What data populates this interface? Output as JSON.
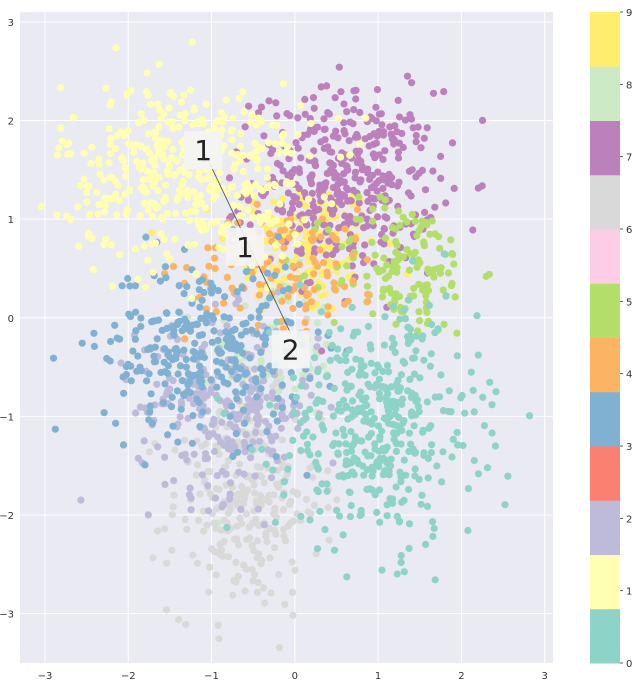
{
  "chart_data": {
    "type": "scatter",
    "title": "",
    "xlabel": "",
    "ylabel": "",
    "xlim": [
      -3.3,
      3.1
    ],
    "ylim": [
      -3.5,
      3.1
    ],
    "xticks": [
      "−3",
      "−2",
      "−1",
      "0",
      "1",
      "2",
      "3"
    ],
    "yticks": [
      "−3",
      "−2",
      "−1",
      "0",
      "1",
      "2",
      "3"
    ],
    "xtick_values": [
      -3,
      -2,
      -1,
      0,
      1,
      2,
      3
    ],
    "ytick_values": [
      -3,
      -2,
      -1,
      0,
      1,
      2,
      3
    ],
    "grid": true,
    "background": "#EAEAF2",
    "colorbar": {
      "labels": [
        "0",
        "1",
        "2",
        "3",
        "4",
        "5",
        "6",
        "7",
        "8",
        "9"
      ],
      "colors": [
        "#8DD3C7",
        "#FFFFB3",
        "#BEBADA",
        "#FB8072",
        "#80B1D3",
        "#FDB462",
        "#B3DE69",
        "#FCCDE5",
        "#D9D9D9",
        "#BC80BD",
        "#CCEBC5",
        "#FFED6F"
      ],
      "placement": "right"
    },
    "series": [
      {
        "name": "9",
        "color": "#FFED6F",
        "center": [
          0.1,
          0.7
        ],
        "spread": [
          0.45,
          0.35
        ],
        "count": 160
      },
      {
        "name": "8",
        "color": "#CCEBC5",
        "center": [
          -0.3,
          -0.4
        ],
        "spread": [
          0.4,
          0.4
        ],
        "count": 80
      },
      {
        "name": "7",
        "color": "#BC80BD",
        "center": [
          0.6,
          1.4
        ],
        "spread": [
          0.55,
          0.45
        ],
        "count": 420
      },
      {
        "name": "6",
        "color": "#D9D9D9",
        "center": [
          -0.6,
          -1.9
        ],
        "spread": [
          0.45,
          0.55
        ],
        "count": 260
      },
      {
        "name": "5",
        "color": "#B3DE69",
        "center": [
          1.3,
          0.5
        ],
        "spread": [
          0.45,
          0.35
        ],
        "count": 150
      },
      {
        "name": "4",
        "color": "#FDB462",
        "center": [
          -0.1,
          0.5
        ],
        "spread": [
          0.6,
          0.3
        ],
        "count": 120
      },
      {
        "name": "2",
        "color": "#BEBADA",
        "center": [
          -0.8,
          -0.9
        ],
        "spread": [
          0.55,
          0.45
        ],
        "count": 260
      },
      {
        "name": "3",
        "color": "#80B1D3",
        "center": [
          -1.1,
          -0.3
        ],
        "spread": [
          0.6,
          0.45
        ],
        "count": 300
      },
      {
        "name": "1",
        "color": "#FFFFB3",
        "center": [
          -1.3,
          1.5
        ],
        "spread": [
          0.75,
          0.45
        ],
        "count": 420
      },
      {
        "name": "0",
        "color": "#8DD3C7",
        "center": [
          1.0,
          -1.1
        ],
        "spread": [
          0.6,
          0.6
        ],
        "count": 420
      }
    ],
    "annotations": [
      {
        "text": "1",
        "x": -1.1,
        "y": 1.7
      },
      {
        "text": "1",
        "x": -0.6,
        "y": 0.72
      },
      {
        "text": "2",
        "x": -0.05,
        "y": -0.32
      }
    ],
    "arrow": {
      "from": [
        -0.05,
        -0.32
      ],
      "via": [
        -0.6,
        0.72
      ],
      "to": [
        -1.1,
        1.7
      ]
    }
  }
}
